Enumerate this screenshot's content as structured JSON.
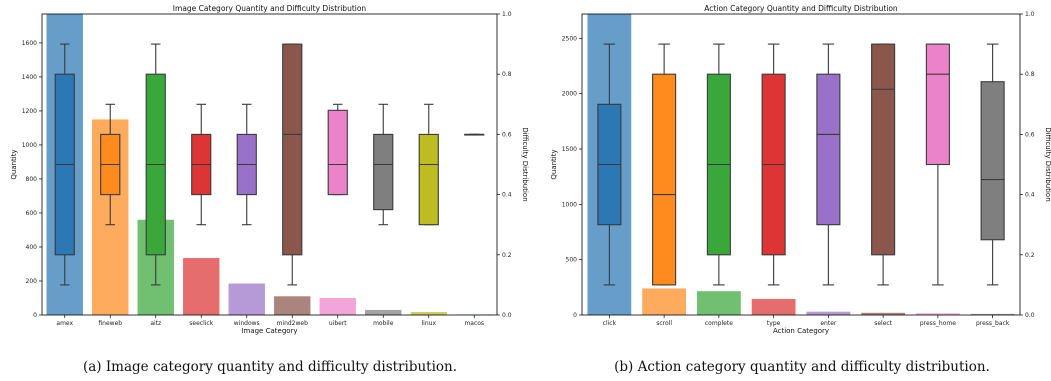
{
  "chart_data": [
    {
      "type": "bar",
      "title": "Image Category Quantity and Difficulty Distribution",
      "xlabel": "Image Category",
      "ylabel": "Quantity",
      "ylabel_right": "Difficulty Distribution",
      "categories": [
        "amex",
        "fineweb",
        "aitz",
        "seeclick",
        "windows",
        "mind2web",
        "uibert",
        "mobile",
        "linux",
        "macos"
      ],
      "colors": [
        "#2b78b4",
        "#ff8a1e",
        "#3aa73a",
        "#dd3535",
        "#9a71c8",
        "#8b564b",
        "#ec82c9",
        "#7f7f7f",
        "#bdbd22",
        "#18bdcf"
      ],
      "values": [
        1770,
        1150,
        560,
        335,
        185,
        110,
        100,
        30,
        18,
        3
      ],
      "ylim": [
        0,
        1770
      ],
      "yticks": [
        0,
        200,
        400,
        600,
        800,
        1000,
        1200,
        1400,
        1600
      ],
      "y2lim": [
        0,
        1
      ],
      "y2ticks": [
        "0.0",
        "0.2",
        "0.4",
        "0.6",
        "0.8",
        "1.0"
      ],
      "difficulty_boxes": [
        {
          "min": 0.1,
          "q1": 0.2,
          "median": 0.5,
          "q3": 0.8,
          "max": 0.9
        },
        {
          "min": 0.3,
          "q1": 0.4,
          "median": 0.5,
          "q3": 0.6,
          "max": 0.7
        },
        {
          "min": 0.1,
          "q1": 0.2,
          "median": 0.5,
          "q3": 0.8,
          "max": 0.9
        },
        {
          "min": 0.3,
          "q1": 0.4,
          "median": 0.5,
          "q3": 0.6,
          "max": 0.7
        },
        {
          "min": 0.3,
          "q1": 0.4,
          "median": 0.5,
          "q3": 0.6,
          "max": 0.7
        },
        {
          "min": 0.1,
          "q1": 0.2,
          "median": 0.6,
          "q3": 0.9,
          "max": 0.9
        },
        {
          "min": 0.4,
          "q1": 0.4,
          "median": 0.5,
          "q3": 0.68,
          "max": 0.7
        },
        {
          "min": 0.3,
          "q1": 0.35,
          "median": 0.5,
          "q3": 0.6,
          "max": 0.7
        },
        {
          "min": 0.3,
          "q1": 0.3,
          "median": 0.5,
          "q3": 0.6,
          "max": 0.7
        },
        {
          "min": 0.6,
          "q1": 0.6,
          "median": 0.6,
          "q3": 0.6,
          "max": 0.6
        }
      ],
      "grid": false,
      "caption": "(a) Image category quantity and difficulty distribution."
    },
    {
      "type": "bar",
      "title": "Action Category Quantity and Difficulty Distribution",
      "xlabel": "Action Category",
      "ylabel": "Quantity",
      "ylabel_right": "Difficulty Distribution",
      "categories": [
        "click",
        "scroll",
        "complete",
        "type",
        "enter",
        "select",
        "press_home",
        "press_back"
      ],
      "colors": [
        "#2b78b4",
        "#ff8a1e",
        "#3aa73a",
        "#dd3535",
        "#9a71c8",
        "#8b564b",
        "#ec82c9",
        "#7f7f7f"
      ],
      "values": [
        2720,
        240,
        215,
        145,
        30,
        20,
        15,
        10
      ],
      "ylim": [
        0,
        2720
      ],
      "yticks": [
        0,
        500,
        1000,
        1500,
        2000,
        2500
      ],
      "y2lim": [
        0,
        1
      ],
      "y2ticks": [
        "0.0",
        "0.2",
        "0.4",
        "0.6",
        "0.8",
        "1.0"
      ],
      "difficulty_boxes": [
        {
          "min": 0.1,
          "q1": 0.3,
          "median": 0.5,
          "q3": 0.7,
          "max": 0.9
        },
        {
          "min": 0.1,
          "q1": 0.1,
          "median": 0.4,
          "q3": 0.8,
          "max": 0.9
        },
        {
          "min": 0.1,
          "q1": 0.2,
          "median": 0.5,
          "q3": 0.8,
          "max": 0.9
        },
        {
          "min": 0.1,
          "q1": 0.2,
          "median": 0.5,
          "q3": 0.8,
          "max": 0.9
        },
        {
          "min": 0.1,
          "q1": 0.3,
          "median": 0.6,
          "q3": 0.8,
          "max": 0.9
        },
        {
          "min": 0.1,
          "q1": 0.2,
          "median": 0.75,
          "q3": 0.9,
          "max": 0.9
        },
        {
          "min": 0.1,
          "q1": 0.5,
          "median": 0.8,
          "q3": 0.9,
          "max": 0.9
        },
        {
          "min": 0.1,
          "q1": 0.25,
          "median": 0.45,
          "q3": 0.775,
          "max": 0.9
        }
      ],
      "grid": false,
      "caption": "(b) Action category quantity and difficulty distribution."
    }
  ]
}
